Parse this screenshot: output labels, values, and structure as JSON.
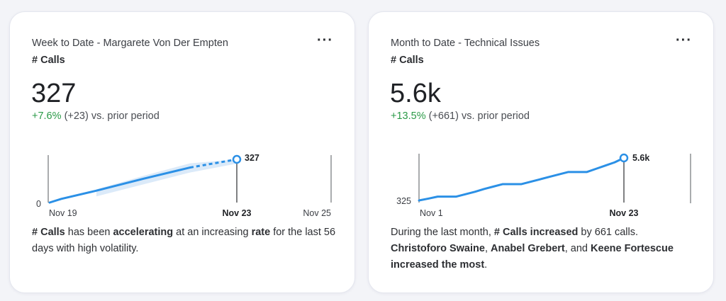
{
  "cards": [
    {
      "title": "Week to Date - Margarete Von Der Empten",
      "metric_label": "# Calls",
      "value": "327",
      "change_pct": "+7.6%",
      "change_abs": "(+23)",
      "change_suffix": "vs. prior period",
      "insight": {
        "p1": "# Calls",
        "p2": " has been ",
        "p3": "accelerating",
        "p4": " at an increasing ",
        "p5": "rate",
        "p6": " for the last 56 days with high volatility."
      },
      "chart_data": {
        "type": "line",
        "x_ticks": [
          "Nov 19",
          "Nov 23",
          "Nov 25"
        ],
        "y_min_label": "0",
        "end_label": "327",
        "ylim": [
          0,
          327
        ],
        "actual": {
          "x": [
            0,
            0.25,
            1,
            2,
            3
          ],
          "y": [
            0,
            28,
            90,
            180,
            265
          ]
        },
        "projected": {
          "x": [
            3,
            4
          ],
          "y": [
            265,
            327
          ]
        },
        "line_color": "#2b90e6"
      }
    },
    {
      "title": "Month to Date - Technical Issues",
      "metric_label": "# Calls",
      "value": "5.6k",
      "change_pct": "+13.5%",
      "change_abs": "(+661)",
      "change_suffix": "vs. prior period",
      "insight": {
        "p1": "During the last month, ",
        "p2": "# Calls increased",
        "p3": " by 661 calls. ",
        "p4": "Christoforo Swaine",
        "p5": ", ",
        "p6": "Anabel Grebert",
        "p7": ", and ",
        "p8": "Keene Fortescue",
        "p9": " increased the most",
        "p10": "."
      },
      "chart_data": {
        "type": "line",
        "x_ticks": [
          "Nov 1",
          "Nov 23"
        ],
        "y_min_label": "325",
        "end_label": "5.6k",
        "ylim": [
          325,
          5600
        ],
        "x": [
          1,
          2,
          3,
          4,
          5,
          6,
          7,
          8,
          9,
          10,
          11,
          12,
          13,
          14,
          15,
          16,
          17,
          18,
          19,
          20,
          21,
          22,
          23
        ],
        "y": [
          325,
          550,
          800,
          800,
          800,
          1100,
          1400,
          1750,
          2050,
          2350,
          2350,
          2350,
          2650,
          2950,
          3250,
          3550,
          3850,
          3850,
          3850,
          4250,
          4650,
          5050,
          5600
        ],
        "line_color": "#2b90e6"
      }
    }
  ]
}
